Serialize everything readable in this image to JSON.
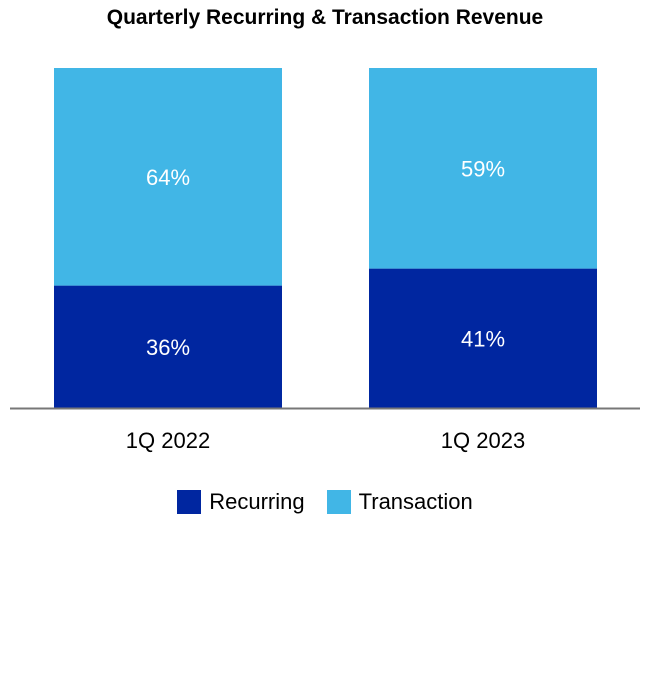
{
  "chart_data": {
    "type": "bar",
    "stacked": true,
    "title": "Quarterly Recurring & Transaction Revenue",
    "categories": [
      "1Q 2022",
      "1Q 2023"
    ],
    "series": [
      {
        "name": "Recurring",
        "values": [
          36,
          41
        ],
        "labels": [
          "36%",
          "41%"
        ],
        "color": "#0026A0"
      },
      {
        "name": "Transaction",
        "values": [
          64,
          59
        ],
        "labels": [
          "64%",
          "59%"
        ],
        "color": "#41B6E6"
      }
    ],
    "ylim": [
      0,
      100
    ],
    "grid": false,
    "legend": "bottom",
    "xlabel": "",
    "ylabel": ""
  }
}
